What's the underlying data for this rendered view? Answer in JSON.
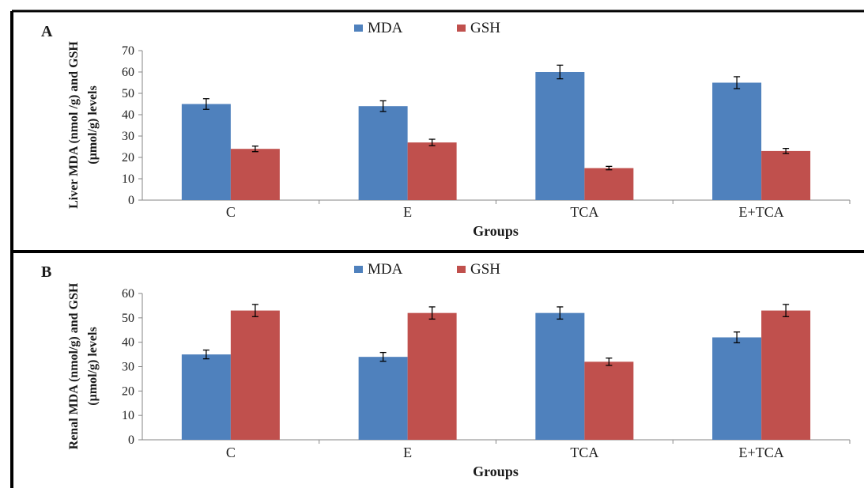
{
  "chart_data": [
    {
      "type": "bar",
      "panel": "A",
      "title": "",
      "xlabel": "Groups",
      "ylabel": "Liver MDA (nmol /g) and GSH (µmol/g) levels",
      "ylim": [
        0,
        70
      ],
      "yticks": [
        0,
        10,
        20,
        30,
        40,
        50,
        60,
        70
      ],
      "grid": false,
      "legend": "top-center",
      "categories": [
        "C",
        "E",
        "TCA",
        "E+TCA"
      ],
      "series": [
        {
          "name": "MDA",
          "color": "#4f81bd",
          "values": [
            45,
            44,
            60,
            55
          ],
          "errors": [
            2.5,
            2.5,
            3.2,
            2.8
          ]
        },
        {
          "name": "GSH",
          "color": "#c0504d",
          "values": [
            24,
            27,
            15,
            23
          ],
          "errors": [
            1.3,
            1.5,
            0.8,
            1.2
          ]
        }
      ]
    },
    {
      "type": "bar",
      "panel": "B",
      "title": "",
      "xlabel": "Groups",
      "ylabel": "Renal MDA (nmol/g) and GSH (µmol/g) levels",
      "ylim": [
        0,
        60
      ],
      "yticks": [
        0,
        10,
        20,
        30,
        40,
        50,
        60
      ],
      "grid": false,
      "legend": "top-center",
      "categories": [
        "C",
        "E",
        "TCA",
        "E+TCA"
      ],
      "series": [
        {
          "name": "MDA",
          "color": "#4f81bd",
          "values": [
            35,
            34,
            52,
            42
          ],
          "errors": [
            1.8,
            1.8,
            2.5,
            2.2
          ]
        },
        {
          "name": "GSH",
          "color": "#c0504d",
          "values": [
            53,
            52,
            32,
            53
          ],
          "errors": [
            2.5,
            2.5,
            1.5,
            2.5
          ]
        }
      ]
    }
  ]
}
